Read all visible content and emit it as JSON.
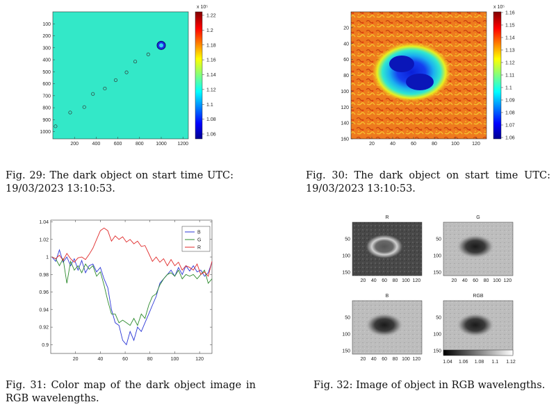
{
  "figures": [
    {
      "caption": "Fig. 29:  The dark object on start time UTC: 19/03/2023 13:10:53.",
      "colorbar": {
        "exponent": "x 10⁵",
        "ticks": [
          "1.22",
          "1.2",
          "1.18",
          "1.16",
          "1.14",
          "1.12",
          "1.1",
          "1.08",
          "1.06"
        ]
      },
      "x_ticks": [
        "200",
        "400",
        "600",
        "800",
        "1000",
        "1200"
      ],
      "y_ticks": [
        "100",
        "200",
        "300",
        "400",
        "500",
        "600",
        "700",
        "800",
        "900",
        "1000"
      ],
      "background_color": "#33e8c8",
      "track_points": [
        [
          25,
          955
        ],
        [
          160,
          840
        ],
        [
          290,
          795
        ],
        [
          370,
          685
        ],
        [
          480,
          640
        ],
        [
          580,
          570
        ],
        [
          680,
          505
        ],
        [
          760,
          415
        ],
        [
          880,
          355
        ]
      ],
      "object": {
        "x": 1000,
        "y": 280
      }
    },
    {
      "caption": "Fig. 30:  The dark object on start time UTC: 19/03/2023 13:10:53.",
      "colorbar": {
        "exponent": "x 10⁵",
        "ticks": [
          "1.16",
          "1.15",
          "1.14",
          "1.13",
          "1.12",
          "1.11",
          "1.1",
          "1.09",
          "1.08",
          "1.07",
          "1.06"
        ]
      },
      "x_ticks": [
        "20",
        "40",
        "60",
        "80",
        "100",
        "120"
      ],
      "y_ticks": [
        "20",
        "40",
        "60",
        "80",
        "100",
        "120",
        "140",
        "160"
      ]
    },
    {
      "caption": "Fig. 31:  Color map of the dark object image in RGB wavelengths.",
      "chart_data": {
        "type": "line",
        "title": "",
        "xlabel": "",
        "ylabel": "",
        "xlim": [
          0,
          130
        ],
        "ylim": [
          0.89,
          1.042
        ],
        "x_ticks": [
          20,
          40,
          60,
          80,
          100,
          120
        ],
        "y_ticks": [
          0.9,
          0.92,
          0.94,
          0.96,
          0.98,
          1,
          1.02,
          1.04
        ],
        "legend_position": "top-right",
        "series": [
          {
            "name": "B",
            "color": "#2a36d6",
            "x": [
              1,
              4,
              7,
              10,
              13,
              16,
              19,
              22,
              25,
              28,
              31,
              34,
              37,
              40,
              43,
              46,
              49,
              52,
              55,
              58,
              61,
              64,
              67,
              70,
              73,
              76,
              79,
              82,
              85,
              88,
              91,
              94,
              97,
              100,
              103,
              106,
              109,
              112,
              115,
              118,
              121,
              124,
              127,
              130
            ],
            "y": [
              1.0,
              0.995,
              1.008,
              0.994,
              1.0,
              0.99,
              0.998,
              0.985,
              0.996,
              0.982,
              0.99,
              0.992,
              0.983,
              0.988,
              0.975,
              0.965,
              0.94,
              0.925,
              0.922,
              0.905,
              0.9,
              0.915,
              0.905,
              0.92,
              0.915,
              0.925,
              0.935,
              0.945,
              0.955,
              0.97,
              0.975,
              0.98,
              0.985,
              0.978,
              0.988,
              0.98,
              0.99,
              0.984,
              0.99,
              0.983,
              0.985,
              0.978,
              0.982,
              0.994
            ]
          },
          {
            "name": "G",
            "color": "#2c8a2c",
            "x": [
              1,
              4,
              7,
              10,
              13,
              16,
              19,
              22,
              25,
              28,
              31,
              34,
              37,
              40,
              43,
              46,
              49,
              52,
              55,
              58,
              61,
              64,
              67,
              70,
              73,
              76,
              79,
              82,
              85,
              88,
              91,
              94,
              97,
              100,
              103,
              106,
              109,
              112,
              115,
              118,
              121,
              124,
              127,
              130
            ],
            "y": [
              1.0,
              0.998,
              0.99,
              0.998,
              0.97,
              0.995,
              0.985,
              0.99,
              0.982,
              0.992,
              0.986,
              0.99,
              0.978,
              0.983,
              0.968,
              0.95,
              0.935,
              0.935,
              0.925,
              0.928,
              0.925,
              0.922,
              0.93,
              0.922,
              0.935,
              0.93,
              0.945,
              0.955,
              0.958,
              0.968,
              0.975,
              0.98,
              0.982,
              0.978,
              0.985,
              0.975,
              0.98,
              0.978,
              0.98,
              0.975,
              0.98,
              0.985,
              0.97,
              0.975
            ]
          },
          {
            "name": "R",
            "color": "#e02a2a",
            "x": [
              1,
              4,
              7,
              10,
              13,
              16,
              19,
              22,
              25,
              28,
              31,
              34,
              37,
              40,
              43,
              46,
              49,
              52,
              55,
              58,
              61,
              64,
              67,
              70,
              73,
              76,
              79,
              82,
              85,
              88,
              91,
              94,
              97,
              100,
              103,
              106,
              109,
              112,
              115,
              118,
              121,
              124,
              127,
              130
            ],
            "y": [
              1.0,
              0.998,
              1.002,
              0.996,
              1.004,
              0.998,
              0.994,
              0.999,
              1.0,
              0.997,
              1.003,
              1.01,
              1.02,
              1.03,
              1.033,
              1.03,
              1.018,
              1.024,
              1.02,
              1.023,
              1.017,
              1.02,
              1.015,
              1.018,
              1.012,
              1.013,
              1.004,
              0.995,
              1.0,
              0.994,
              0.998,
              0.99,
              0.997,
              0.99,
              0.994,
              0.985,
              0.99,
              0.988,
              0.985,
              0.992,
              0.98,
              0.983,
              0.978,
              0.995
            ]
          }
        ]
      }
    },
    {
      "caption": "Fig. 32: Image of object in RGB wavelengths.",
      "panels": [
        {
          "title": "R"
        },
        {
          "title": "G"
        },
        {
          "title": "B"
        },
        {
          "title": "RGB"
        }
      ],
      "x_ticks": [
        "20",
        "40",
        "60",
        "80",
        "100",
        "120"
      ],
      "y_ticks": [
        "50",
        "100",
        "150"
      ],
      "colorbar_ticks": [
        "1.04",
        "1.06",
        "1.08",
        "1.1",
        "1.12"
      ]
    }
  ]
}
